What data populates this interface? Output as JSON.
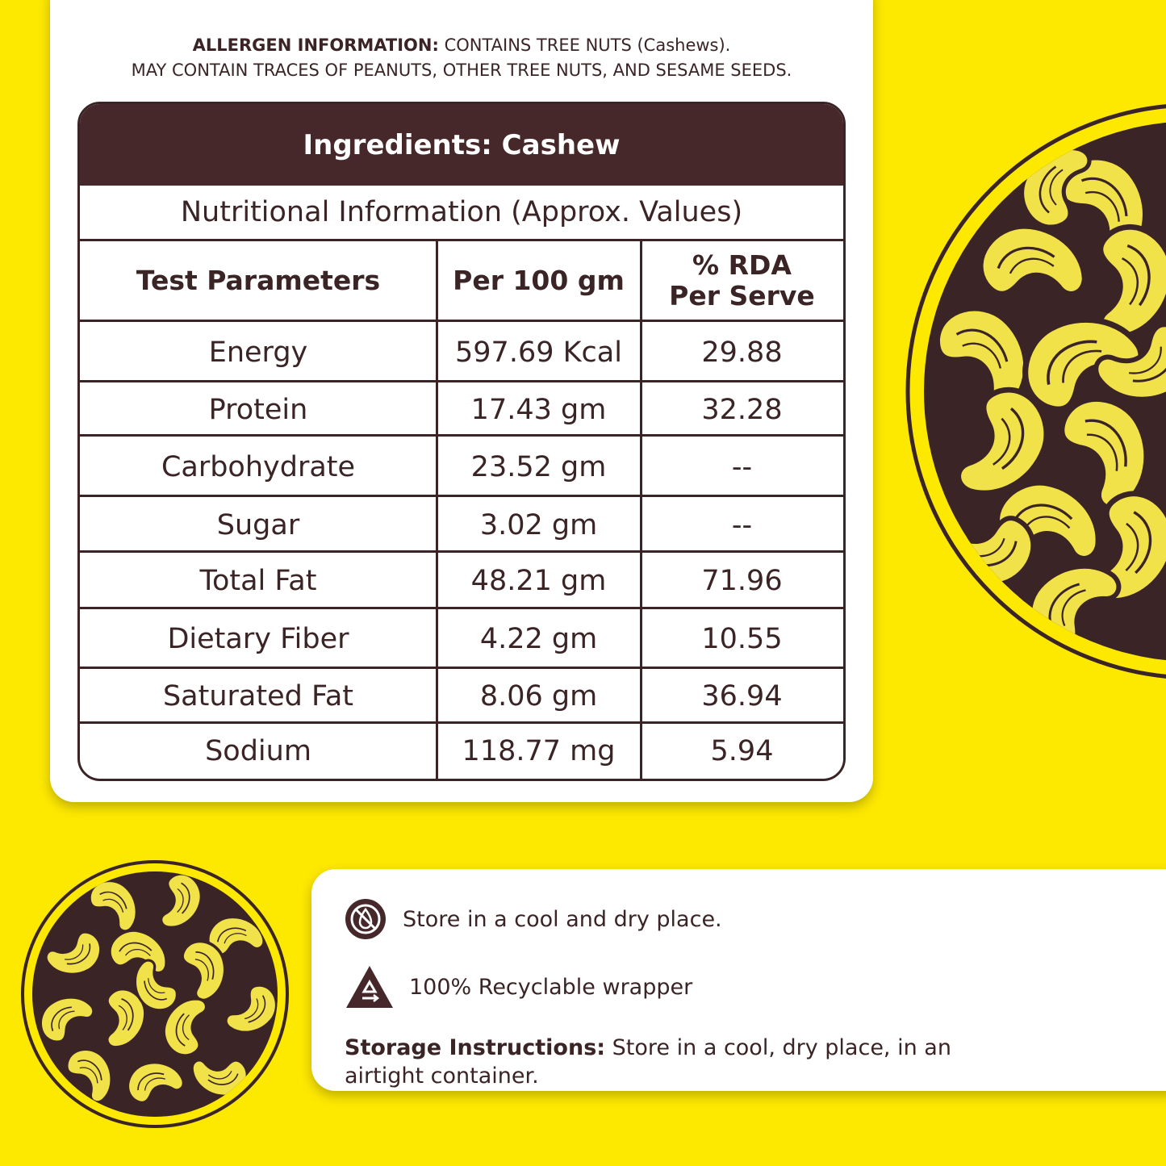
{
  "allergen": {
    "label": "ALLERGEN INFORMATION:",
    "line1": "CONTAINS TREE NUTS (Cashews).",
    "line2": "MAY CONTAIN TRACES OF PEANUTS, OTHER TREE NUTS, AND SESAME SEEDS."
  },
  "table": {
    "ingredients": "Ingredients: Cashew",
    "subtitle": "Nutritional Information (Approx. Values)",
    "headers": {
      "param": "Test Parameters",
      "per100": "Per 100 gm",
      "rda_line1": "% RDA",
      "rda_line2": "Per Serve"
    },
    "rows": [
      {
        "param": "Energy",
        "per100": "597.69 Kcal",
        "rda": "29.88"
      },
      {
        "param": "Protein",
        "per100": "17.43 gm",
        "rda": "32.28"
      },
      {
        "param": "Carbohydrate",
        "per100": "23.52 gm",
        "rda": "--"
      },
      {
        "param": "Sugar",
        "per100": "3.02 gm",
        "rda": "--"
      },
      {
        "param": "Total Fat",
        "per100": "48.21 gm",
        "rda": "71.96"
      },
      {
        "param": "Dietary Fiber",
        "per100": "4.22 gm",
        "rda": "10.55"
      },
      {
        "param": "Saturated Fat",
        "per100": "8.06 gm",
        "rda": "36.94"
      },
      {
        "param": "Sodium",
        "per100": "118.77 mg",
        "rda": "5.94"
      }
    ]
  },
  "features": {
    "cool_dry": "Store in a cool and dry place.",
    "recyclable": "100% Recyclable wrapper"
  },
  "storage": {
    "label": "Storage Instructions:",
    "text": "Store in a cool, dry place, in an airtight container."
  },
  "colors": {
    "background": "#fde800",
    "brown": "#46282b",
    "text": "#3a2426",
    "nut": "#f2e24a"
  }
}
